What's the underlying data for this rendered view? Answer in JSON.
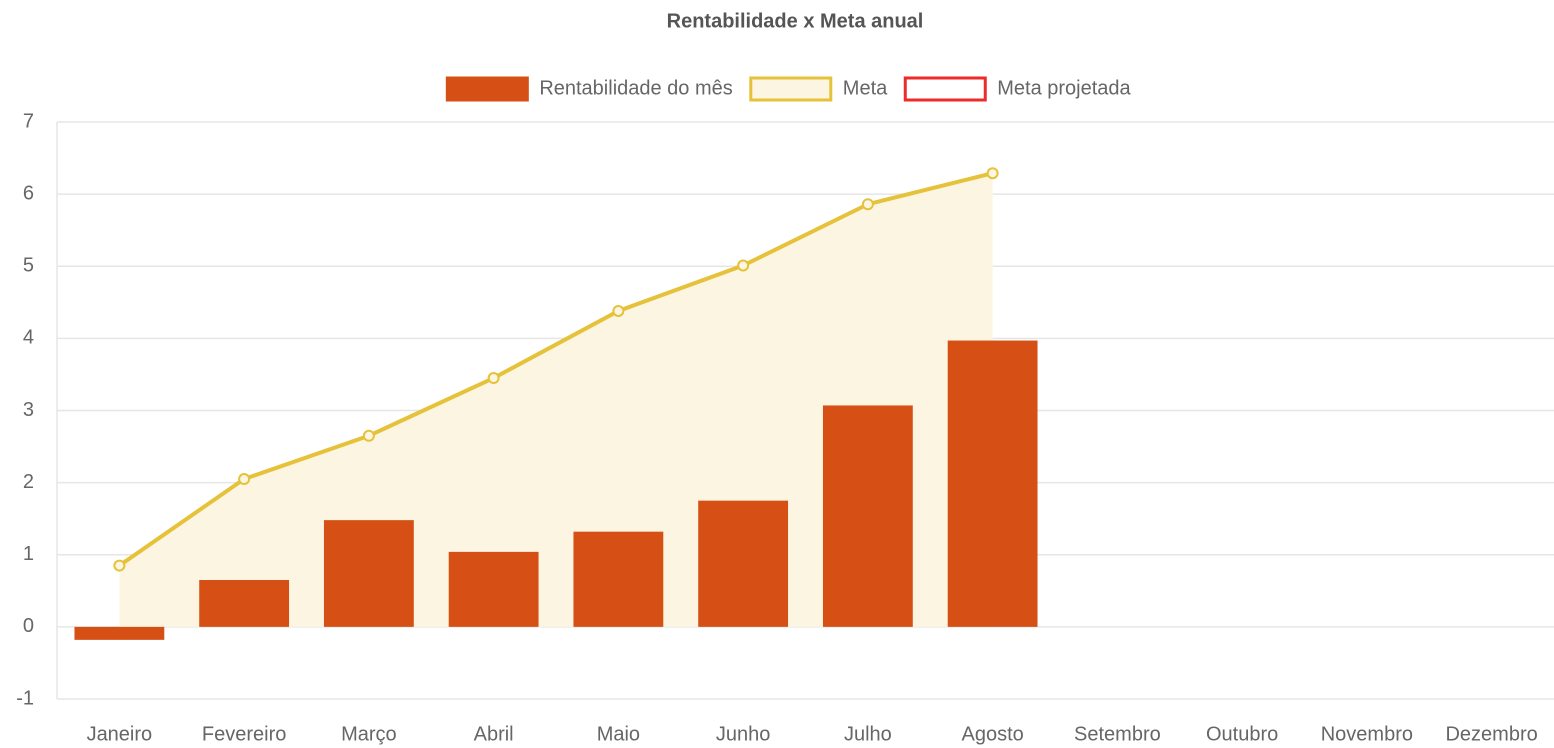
{
  "chart_data": {
    "type": "bar_line",
    "title": "Rentabilidade x Meta anual",
    "categories": [
      "Janeiro",
      "Fevereiro",
      "Março",
      "Abril",
      "Maio",
      "Junho",
      "Julho",
      "Agosto",
      "Setembro",
      "Outubro",
      "Novembro",
      "Dezembro"
    ],
    "series": [
      {
        "name": "Rentabilidade do mês",
        "type": "bar",
        "color": "#d65016",
        "values": [
          -0.18,
          0.65,
          1.48,
          1.04,
          1.32,
          1.75,
          3.07,
          3.97,
          null,
          null,
          null,
          null
        ]
      },
      {
        "name": "Meta",
        "type": "line",
        "color": "#e5c23a",
        "fill": "#fcf5e1",
        "values": [
          0.85,
          2.05,
          2.65,
          3.45,
          4.38,
          5.01,
          5.86,
          6.29,
          null,
          null,
          null,
          null
        ]
      },
      {
        "name": "Meta projetada",
        "type": "line",
        "color": "#ee2a2a",
        "values": [
          null,
          null,
          null,
          null,
          null,
          null,
          null,
          null,
          null,
          null,
          null,
          null
        ]
      }
    ],
    "ylim": [
      -1,
      7
    ],
    "yticks": [
      -1,
      0,
      1,
      2,
      3,
      4,
      5,
      6,
      7
    ],
    "grid": true
  }
}
